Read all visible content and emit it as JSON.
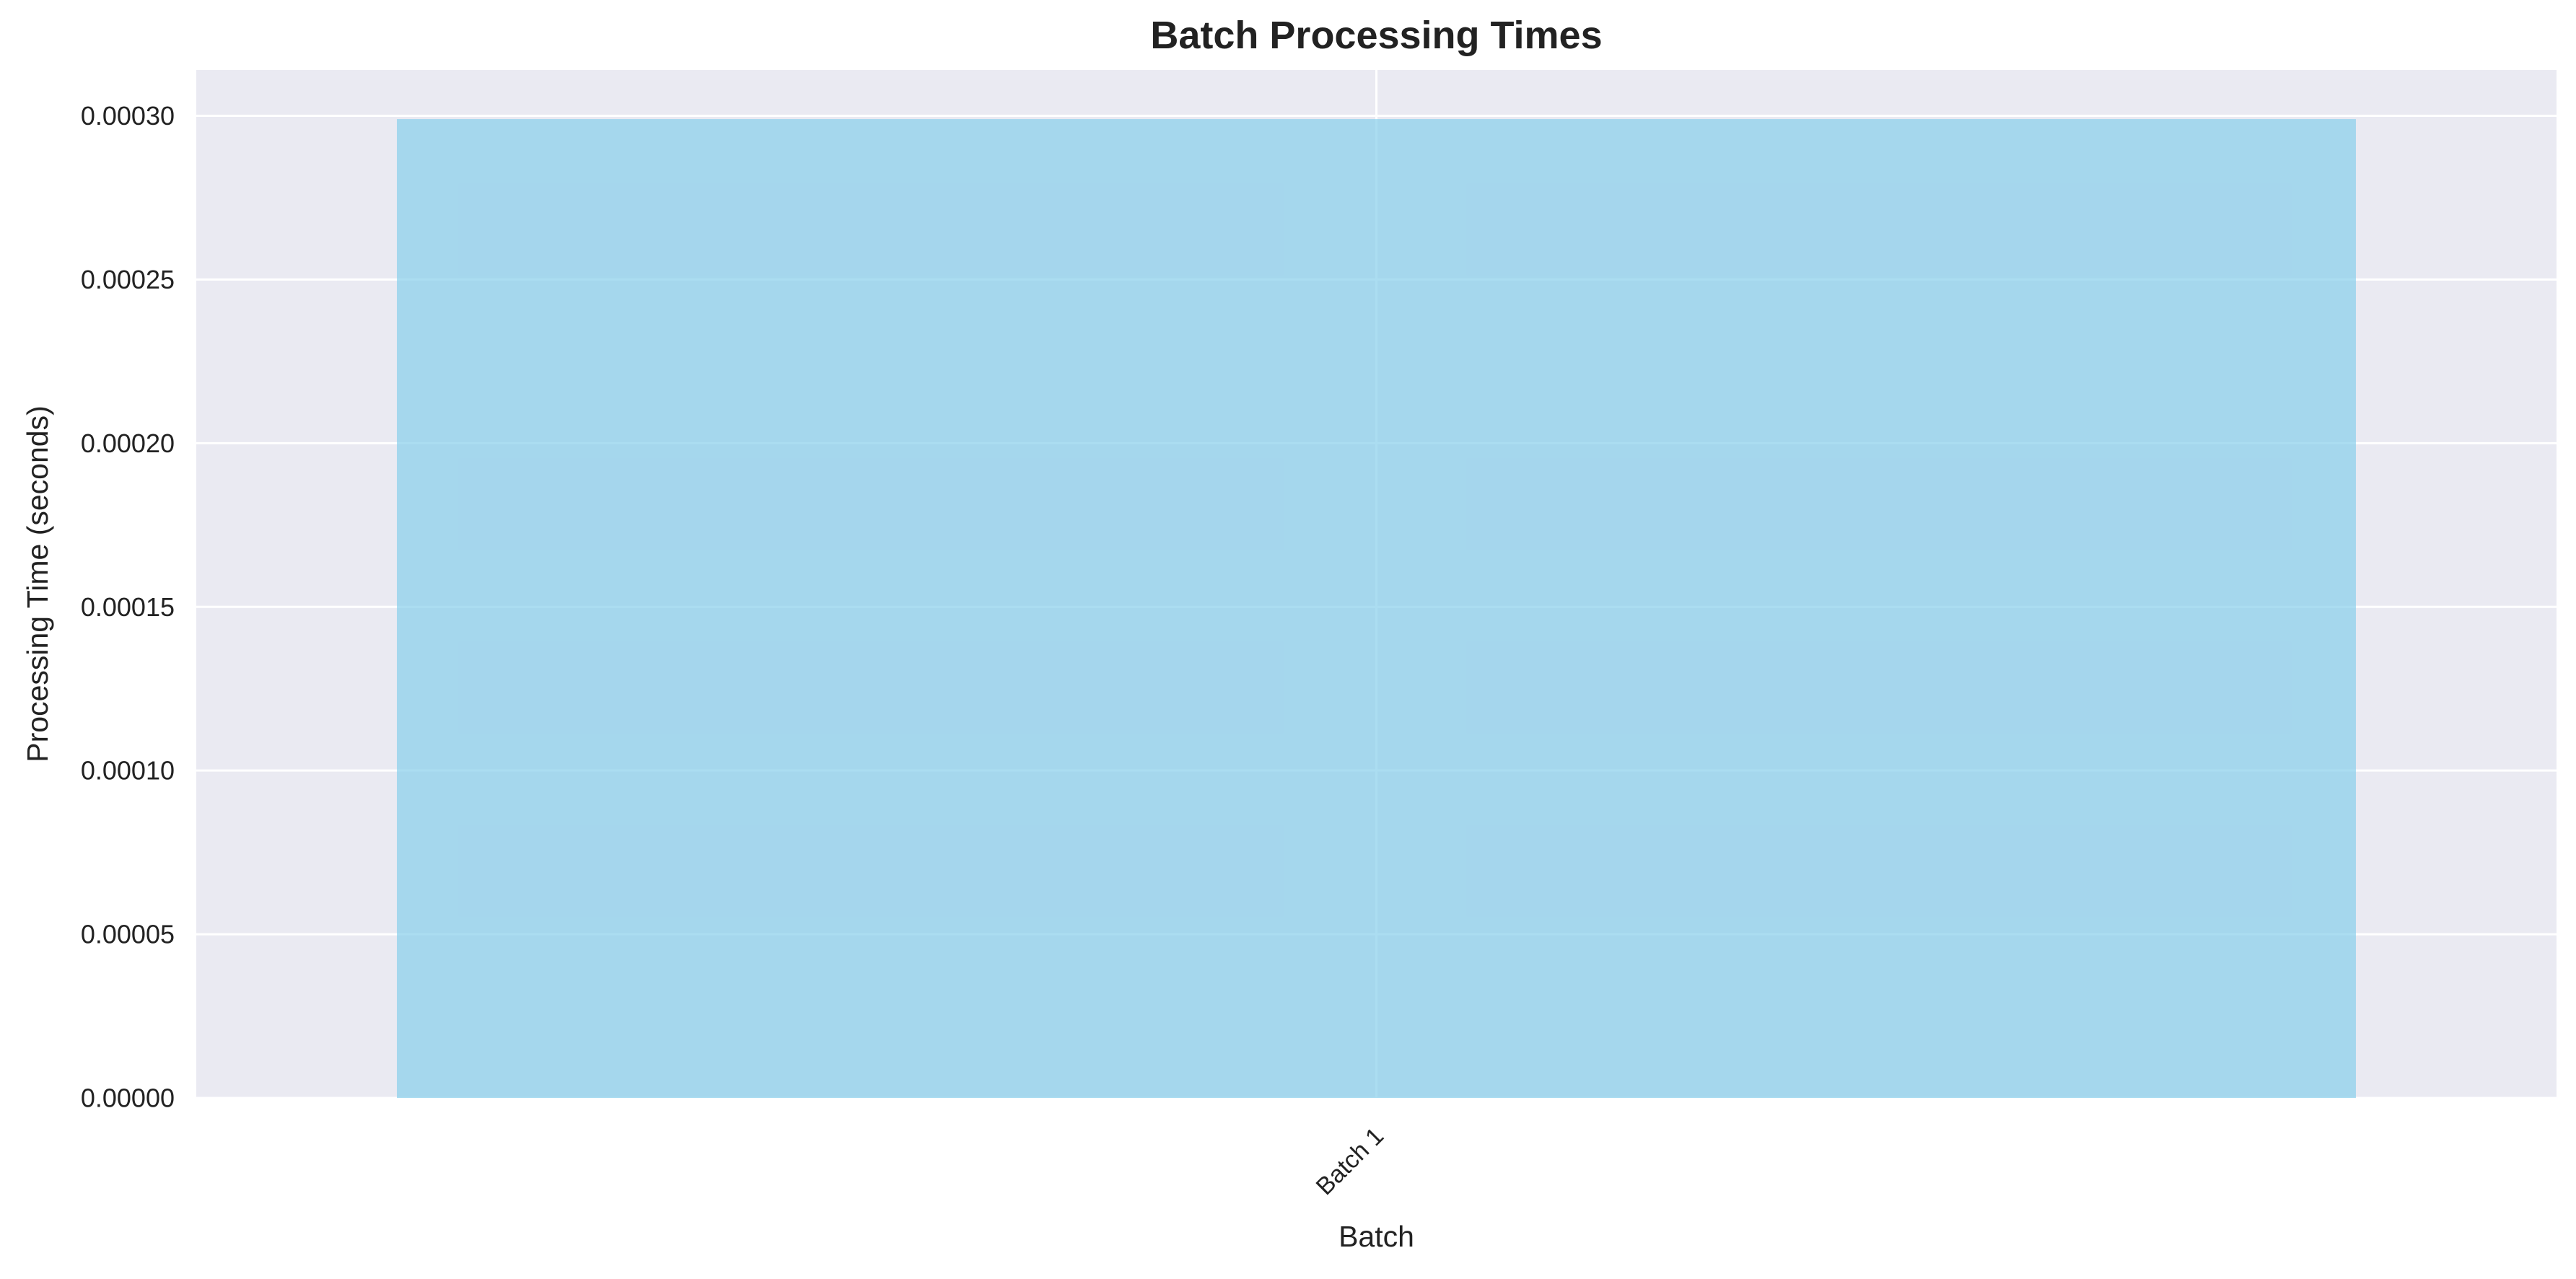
{
  "chart_data": {
    "type": "bar",
    "title": "Batch Processing Times",
    "xlabel": "Batch",
    "ylabel": "Processing Time (seconds)",
    "categories": [
      "Batch 1"
    ],
    "values": [
      0.000299
    ],
    "ylim": [
      0,
      0.000314
    ],
    "yticks": [
      0.0,
      5e-05,
      0.0001,
      0.00015,
      0.0002,
      0.00025,
      0.0003
    ],
    "ytick_labels": [
      "0.00000",
      "0.00005",
      "0.00010",
      "0.00015",
      "0.00020",
      "0.00025",
      "0.00030"
    ],
    "grid": true,
    "legend": "none",
    "colors": {
      "bar": "#87ceeb",
      "plot_background": "#eaeaf2",
      "grid": "#ffffff",
      "text": "#222222"
    }
  }
}
